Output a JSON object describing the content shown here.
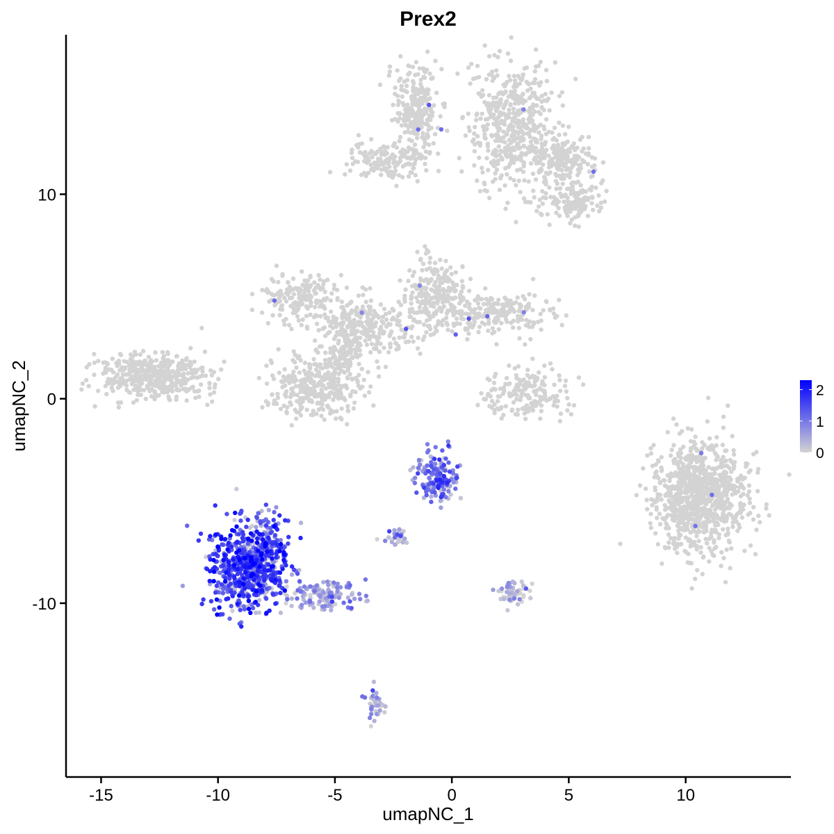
{
  "chart_data": {
    "type": "scatter",
    "title": "Prex2",
    "xlabel": "umapNC_1",
    "ylabel": "umapNC_2",
    "xlim": [
      -16.5,
      14.5
    ],
    "ylim": [
      -18.5,
      17.8
    ],
    "xticks": [
      -15,
      -10,
      -5,
      0,
      5,
      10
    ],
    "yticks": [
      -10,
      0,
      10
    ],
    "xtick_labels": [
      "-15",
      "-10",
      "-5",
      "0",
      "5",
      "10"
    ],
    "ytick_labels": [
      "-10",
      "0",
      "10"
    ],
    "grid": false,
    "legend": {
      "position": "right",
      "type": "colorbar",
      "range": [
        0,
        2.3
      ],
      "labels": [
        "2",
        "1",
        "0"
      ],
      "label_values": [
        2,
        1,
        0
      ],
      "low_color": "#d3d3d3",
      "high_color": "#0000ff"
    },
    "point_color_low": "#d3d3d3",
    "point_color_high": "#0000ff",
    "clusters": [
      {
        "cx": -1.5,
        "cy": 14.2,
        "sx": 0.45,
        "sy": 1.0,
        "n": 260,
        "expr": 0.0
      },
      {
        "cx": 2.6,
        "cy": 13.2,
        "sx": 0.9,
        "sy": 1.6,
        "n": 520,
        "expr": 0.0
      },
      {
        "cx": 4.8,
        "cy": 11.6,
        "sx": 0.7,
        "sy": 0.6,
        "n": 180,
        "expr": 0.0
      },
      {
        "cx": 5.3,
        "cy": 9.7,
        "sx": 0.6,
        "sy": 0.5,
        "n": 130,
        "expr": 0.0
      },
      {
        "cx": -2.8,
        "cy": 11.6,
        "sx": 0.8,
        "sy": 0.45,
        "n": 150,
        "expr": 0.0
      },
      {
        "cx": -6.5,
        "cy": 5.0,
        "sx": 0.8,
        "sy": 0.6,
        "n": 170,
        "expr": 0.0
      },
      {
        "cx": -3.6,
        "cy": 3.6,
        "sx": 1.2,
        "sy": 0.7,
        "n": 260,
        "expr": 0.0
      },
      {
        "cx": -0.7,
        "cy": 5.2,
        "sx": 0.6,
        "sy": 0.9,
        "n": 220,
        "expr": 0.0
      },
      {
        "cx": 1.8,
        "cy": 4.2,
        "sx": 1.2,
        "sy": 0.5,
        "n": 230,
        "expr": 0.0
      },
      {
        "cx": -5.8,
        "cy": 0.6,
        "sx": 0.9,
        "sy": 0.8,
        "n": 300,
        "expr": 0.0
      },
      {
        "cx": -4.5,
        "cy": 2.2,
        "sx": 0.5,
        "sy": 0.9,
        "n": 140,
        "expr": 0.0
      },
      {
        "cx": -12.8,
        "cy": 1.1,
        "sx": 1.1,
        "sy": 0.55,
        "n": 450,
        "expr": 0.0
      },
      {
        "cx": 3.2,
        "cy": 0.2,
        "sx": 0.9,
        "sy": 0.6,
        "n": 180,
        "expr": 0.0
      },
      {
        "cx": 10.6,
        "cy": -4.8,
        "sx": 1.0,
        "sy": 1.35,
        "n": 950,
        "expr": 0.0
      },
      {
        "cx": -8.7,
        "cy": -8.2,
        "sx": 0.9,
        "sy": 1.0,
        "n": 680,
        "expr": 1.5
      },
      {
        "cx": -7.8,
        "cy": -7.0,
        "sx": 0.35,
        "sy": 0.8,
        "n": 80,
        "expr": 1.4
      },
      {
        "cx": -5.5,
        "cy": -9.6,
        "sx": 0.9,
        "sy": 0.35,
        "n": 130,
        "expr": 0.6
      },
      {
        "cx": -0.6,
        "cy": -3.8,
        "sx": 0.45,
        "sy": 0.6,
        "n": 170,
        "expr": 1.1
      },
      {
        "cx": 2.6,
        "cy": -9.4,
        "sx": 0.35,
        "sy": 0.35,
        "n": 60,
        "expr": 0.1
      },
      {
        "cx": -3.3,
        "cy": -14.9,
        "sx": 0.2,
        "sy": 0.4,
        "n": 40,
        "expr": 0.3
      },
      {
        "cx": -2.4,
        "cy": -6.8,
        "sx": 0.3,
        "sy": 0.2,
        "n": 30,
        "expr": 0.4
      }
    ]
  }
}
